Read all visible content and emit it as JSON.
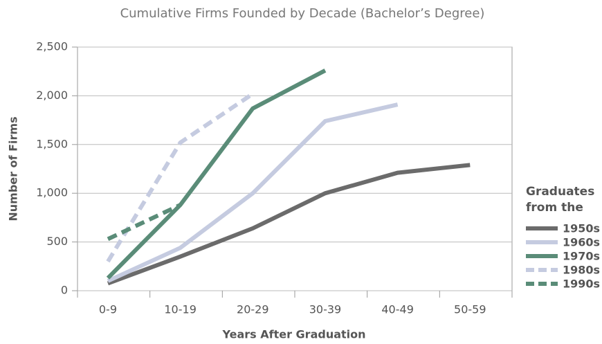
{
  "chart_data": {
    "type": "line",
    "title": "Cumulative Firms Founded by Decade (Bachelor’s Degree)",
    "x_label": "Years After Graduation",
    "y_label": "Number of Firms",
    "categories": [
      "0-9",
      "10-19",
      "20-29",
      "30-39",
      "40-49",
      "50-59"
    ],
    "ylim": [
      0,
      2500
    ],
    "yticks": [
      0,
      500,
      {
        "value": 1000,
        "label": "1,000"
      },
      {
        "value": 1500,
        "label": "1,500"
      },
      {
        "value": 2000,
        "label": "2,000"
      },
      {
        "value": 2500,
        "label": "2,500"
      }
    ],
    "grid": true,
    "legend_title": "Graduates from the",
    "legend_position": "right",
    "series": [
      {
        "name": "1950s",
        "color": "#6b6b6b",
        "dashed": false,
        "values": [
          75,
          350,
          640,
          1000,
          1210,
          1290
        ]
      },
      {
        "name": "1960s",
        "color": "#c5cbe0",
        "dashed": false,
        "values": [
          100,
          440,
          1000,
          1740,
          1910,
          null
        ]
      },
      {
        "name": "1970s",
        "color": "#5a8c78",
        "dashed": false,
        "values": [
          130,
          880,
          1870,
          2260,
          null,
          null
        ]
      },
      {
        "name": "1980s",
        "color": "#c5cbe0",
        "dashed": true,
        "values": [
          300,
          1520,
          2020,
          null,
          null,
          null
        ]
      },
      {
        "name": "1990s",
        "color": "#5a8c78",
        "dashed": true,
        "values": [
          530,
          880,
          null,
          null,
          null,
          null
        ]
      }
    ]
  }
}
